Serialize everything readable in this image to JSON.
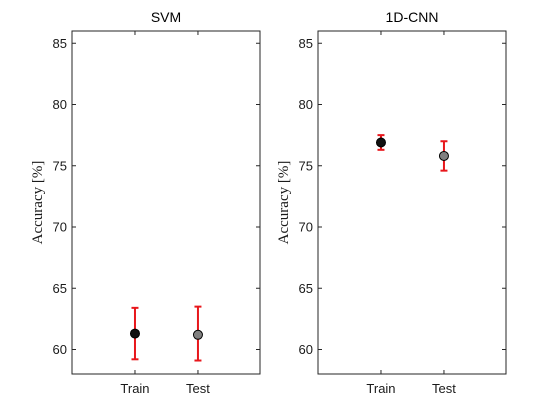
{
  "chart_data": [
    {
      "type": "scatter",
      "title": "SVM",
      "xlabel": "",
      "ylabel": "Accuracy [%]",
      "categories": [
        "Train",
        "Test"
      ],
      "ylim": [
        58,
        86
      ],
      "yticks": [
        60,
        65,
        70,
        75,
        80,
        85
      ],
      "grid": false,
      "series": [
        {
          "values": [
            61.3,
            61.2
          ],
          "error_low": [
            59.2,
            59.1
          ],
          "error_high": [
            63.4,
            63.5
          ],
          "marker_colors": [
            "#111111",
            "#808080"
          ],
          "error_color": "#e8161b"
        }
      ]
    },
    {
      "type": "scatter",
      "title": "1D-CNN",
      "xlabel": "",
      "ylabel": "Accuracy [%]",
      "categories": [
        "Train",
        "Test"
      ],
      "ylim": [
        58,
        86
      ],
      "yticks": [
        60,
        65,
        70,
        75,
        80,
        85
      ],
      "grid": false,
      "series": [
        {
          "values": [
            76.9,
            75.8
          ],
          "error_low": [
            76.3,
            74.6
          ],
          "error_high": [
            77.5,
            77.0
          ],
          "marker_colors": [
            "#111111",
            "#808080"
          ],
          "error_color": "#e8161b"
        }
      ]
    }
  ]
}
